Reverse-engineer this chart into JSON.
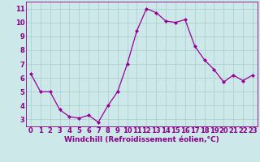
{
  "x": [
    0,
    1,
    2,
    3,
    4,
    5,
    6,
    7,
    8,
    9,
    10,
    11,
    12,
    13,
    14,
    15,
    16,
    17,
    18,
    19,
    20,
    21,
    22,
    23
  ],
  "y": [
    6.3,
    5.0,
    5.0,
    3.7,
    3.2,
    3.1,
    3.3,
    2.8,
    4.0,
    5.0,
    7.0,
    9.4,
    11.0,
    10.7,
    10.1,
    10.0,
    10.2,
    8.3,
    7.3,
    6.6,
    5.7,
    6.2,
    5.8,
    6.2
  ],
  "line_color": "#990099",
  "marker": "D",
  "marker_size": 2.0,
  "linewidth": 0.9,
  "bg_color": "#cce8e8",
  "grid_color": "#aacccc",
  "xlabel": "Windchill (Refroidissement éolien,°C)",
  "xlabel_fontsize": 6.5,
  "xlabel_color": "#880088",
  "tick_color": "#880088",
  "tick_fontsize": 6.0,
  "ylim": [
    2.5,
    11.5
  ],
  "xlim": [
    -0.5,
    23.5
  ],
  "yticks": [
    3,
    4,
    5,
    6,
    7,
    8,
    9,
    10,
    11
  ],
  "xticks": [
    0,
    1,
    2,
    3,
    4,
    5,
    6,
    7,
    8,
    9,
    10,
    11,
    12,
    13,
    14,
    15,
    16,
    17,
    18,
    19,
    20,
    21,
    22,
    23
  ]
}
